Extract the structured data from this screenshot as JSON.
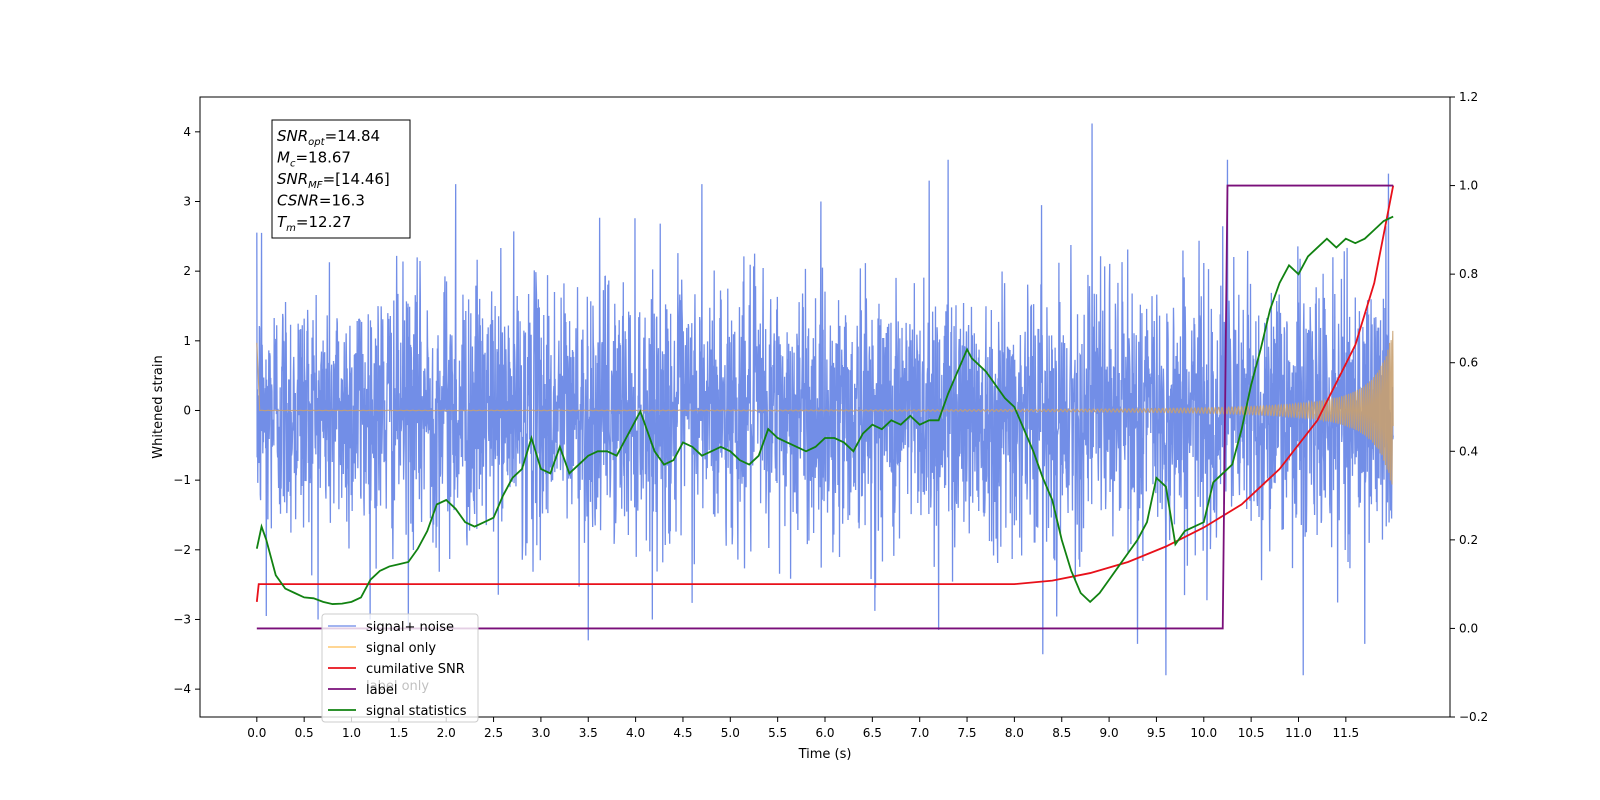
{
  "chart_data": {
    "type": "line",
    "xlabel": "Time (s)",
    "ylabel_left": "Whitened strain",
    "ylabel_right": "",
    "xlim": [
      -0.6,
      12.6
    ],
    "ylim_left": [
      -4.4,
      4.5
    ],
    "ylim_right": [
      -0.2,
      1.2
    ],
    "x_ticks": [
      0.0,
      0.5,
      1.0,
      1.5,
      2.0,
      2.5,
      3.0,
      3.5,
      4.0,
      4.5,
      5.0,
      5.5,
      6.0,
      6.5,
      7.0,
      7.5,
      8.0,
      8.5,
      9.0,
      9.5,
      10.0,
      10.5,
      11.0,
      11.5
    ],
    "x_tick_labels": [
      "0.0",
      "0.5",
      "1.0",
      "1.5",
      "2.0",
      "2.5",
      "3.0",
      "3.5",
      "4.0",
      "4.5",
      "5.0",
      "5.5",
      "6.0",
      "6.5",
      "7.0",
      "7.5",
      "8.0",
      "8.5",
      "9.0",
      "9.5",
      "10.0",
      "10.5",
      "11.0",
      "11.5"
    ],
    "y_ticks_left": [
      -4,
      -3,
      -2,
      -1,
      0,
      1,
      2,
      3,
      4
    ],
    "y_tick_labels_left": [
      "−4",
      "−3",
      "−2",
      "−1",
      "0",
      "1",
      "2",
      "3",
      "4"
    ],
    "y_ticks_right": [
      -0.2,
      0.0,
      0.2,
      0.4,
      0.6,
      0.8,
      1.0,
      1.2
    ],
    "y_tick_labels_right": [
      "−0.2",
      "0.0",
      "0.2",
      "0.4",
      "0.6",
      "0.8",
      "1.0",
      "1.2"
    ],
    "grid": false,
    "legend_position": "lower-left",
    "legend": [
      {
        "name": "signal+ noise",
        "color": "#6a88e6"
      },
      {
        "name": "signal only",
        "color": "#ffbe55"
      },
      {
        "name": "cumilative SNR",
        "color": "#e8101a"
      },
      {
        "name": "label",
        "color": "#7a0f7a"
      },
      {
        "name": "signal statistics",
        "color": "#118211"
      }
    ],
    "legend_ghost_text": [
      "label only"
    ],
    "info_box": {
      "lines": [
        {
          "main": "SNR",
          "sub": "opt",
          "value": "=14.84"
        },
        {
          "main": "M",
          "sub": "c",
          "value": "=18.67"
        },
        {
          "main": "SNR",
          "sub": "MF",
          "value": "=[14.46]"
        },
        {
          "main": "CSNR",
          "sub": "",
          "value": "=16.3"
        },
        {
          "main": "T",
          "sub": "m",
          "value": "=12.27"
        }
      ]
    },
    "series": [
      {
        "name": "signal+ noise",
        "axis": "left",
        "kind": "noise",
        "x_range": [
          0.0,
          12.0
        ],
        "std": 1.0,
        "peaks": [
          [
            0.05,
            2.55
          ],
          [
            0.1,
            -2.95
          ],
          [
            1.6,
            -3.1
          ],
          [
            2.1,
            3.25
          ],
          [
            3.5,
            -3.3
          ],
          [
            4.7,
            3.25
          ],
          [
            7.1,
            3.3
          ],
          [
            7.2,
            -3.15
          ],
          [
            7.3,
            3.6
          ],
          [
            8.3,
            -3.5
          ],
          [
            8.82,
            4.12
          ],
          [
            9.3,
            -3.35
          ],
          [
            9.6,
            -3.8
          ],
          [
            10.25,
            3.6
          ],
          [
            11.05,
            -3.8
          ],
          [
            11.7,
            -3.35
          ],
          [
            11.95,
            3.4
          ]
        ]
      },
      {
        "name": "signal only",
        "axis": "left",
        "kind": "chirp",
        "x_range": [
          0.0,
          12.0
        ],
        "start_spike": 0.95,
        "amplitude_at_end": 1.2
      },
      {
        "name": "cumilative SNR",
        "axis": "right",
        "x": [
          0.0,
          0.02,
          8.0,
          8.4,
          8.8,
          9.2,
          9.6,
          10.0,
          10.4,
          10.8,
          11.2,
          11.6,
          11.8,
          12.0
        ],
        "y": [
          0.06,
          0.1,
          0.1,
          0.108,
          0.125,
          0.15,
          0.185,
          0.228,
          0.28,
          0.36,
          0.47,
          0.64,
          0.78,
          1.0
        ]
      },
      {
        "name": "label",
        "axis": "right",
        "x": [
          0.0,
          10.2,
          10.25,
          12.0
        ],
        "y": [
          0.0,
          0.0,
          1.0,
          1.0
        ]
      },
      {
        "name": "signal statistics",
        "axis": "right",
        "x": [
          0.0,
          0.05,
          0.1,
          0.15,
          0.2,
          0.3,
          0.4,
          0.5,
          0.6,
          0.7,
          0.8,
          0.9,
          1.0,
          1.1,
          1.2,
          1.3,
          1.4,
          1.5,
          1.6,
          1.7,
          1.8,
          1.9,
          2.0,
          2.1,
          2.2,
          2.3,
          2.4,
          2.5,
          2.6,
          2.7,
          2.8,
          2.9,
          3.0,
          3.1,
          3.2,
          3.3,
          3.4,
          3.5,
          3.6,
          3.7,
          3.8,
          3.9,
          4.0,
          4.05,
          4.1,
          4.2,
          4.3,
          4.4,
          4.5,
          4.6,
          4.7,
          4.8,
          4.9,
          5.0,
          5.1,
          5.2,
          5.3,
          5.4,
          5.5,
          5.6,
          5.7,
          5.8,
          5.9,
          6.0,
          6.1,
          6.2,
          6.3,
          6.4,
          6.5,
          6.6,
          6.7,
          6.8,
          6.9,
          7.0,
          7.1,
          7.2,
          7.3,
          7.4,
          7.5,
          7.55,
          7.6,
          7.7,
          7.8,
          7.9,
          8.0,
          8.1,
          8.2,
          8.3,
          8.4,
          8.5,
          8.6,
          8.7,
          8.8,
          8.9,
          9.0,
          9.1,
          9.2,
          9.3,
          9.4,
          9.5,
          9.6,
          9.7,
          9.8,
          9.9,
          10.0,
          10.1,
          10.2,
          10.3,
          10.4,
          10.5,
          10.6,
          10.7,
          10.8,
          10.9,
          11.0,
          11.1,
          11.2,
          11.3,
          11.4,
          11.5,
          11.6,
          11.7,
          11.8,
          11.9,
          12.0
        ],
        "y": [
          0.18,
          0.23,
          0.2,
          0.16,
          0.12,
          0.09,
          0.08,
          0.07,
          0.068,
          0.06,
          0.055,
          0.056,
          0.06,
          0.07,
          0.11,
          0.13,
          0.14,
          0.145,
          0.15,
          0.18,
          0.22,
          0.28,
          0.29,
          0.27,
          0.24,
          0.23,
          0.24,
          0.25,
          0.3,
          0.34,
          0.36,
          0.43,
          0.36,
          0.35,
          0.41,
          0.35,
          0.37,
          0.39,
          0.4,
          0.4,
          0.39,
          0.43,
          0.47,
          0.49,
          0.46,
          0.4,
          0.37,
          0.38,
          0.42,
          0.41,
          0.39,
          0.4,
          0.41,
          0.4,
          0.38,
          0.37,
          0.39,
          0.45,
          0.43,
          0.42,
          0.41,
          0.4,
          0.41,
          0.43,
          0.43,
          0.42,
          0.4,
          0.44,
          0.46,
          0.45,
          0.47,
          0.46,
          0.48,
          0.46,
          0.47,
          0.47,
          0.53,
          0.58,
          0.63,
          0.61,
          0.6,
          0.58,
          0.55,
          0.52,
          0.5,
          0.45,
          0.4,
          0.34,
          0.29,
          0.2,
          0.13,
          0.08,
          0.06,
          0.08,
          0.11,
          0.14,
          0.17,
          0.2,
          0.24,
          0.34,
          0.32,
          0.19,
          0.22,
          0.23,
          0.24,
          0.33,
          0.35,
          0.37,
          0.45,
          0.55,
          0.63,
          0.72,
          0.78,
          0.82,
          0.8,
          0.84,
          0.86,
          0.88,
          0.86,
          0.88,
          0.87,
          0.88,
          0.9,
          0.92,
          0.93
        ]
      }
    ]
  }
}
